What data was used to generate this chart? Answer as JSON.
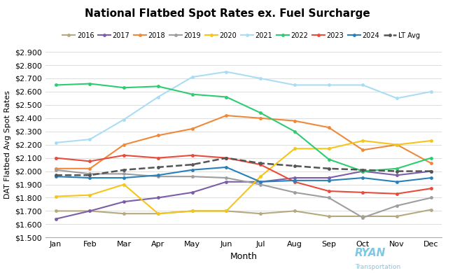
{
  "title": "National Flatbed Spot Rates ex. Fuel Surcharge",
  "xlabel": "Month",
  "ylabel": "DAT Flatbed Avg Spot Rates",
  "months": [
    "Jan",
    "Feb",
    "Mar",
    "Apr",
    "May",
    "Jun",
    "Jul",
    "Aug",
    "Sep",
    "Oct",
    "Nov",
    "Dec"
  ],
  "ylim": [
    1.5,
    2.9
  ],
  "yticks": [
    1.5,
    1.6,
    1.7,
    1.8,
    1.9,
    2.0,
    2.1,
    2.2,
    2.3,
    2.4,
    2.5,
    2.6,
    2.7,
    2.8,
    2.9
  ],
  "series": {
    "2016": {
      "color": "#b5aa7f",
      "values": [
        1.7,
        1.7,
        1.68,
        1.68,
        1.7,
        1.7,
        1.68,
        1.7,
        1.66,
        1.66,
        1.66,
        1.71
      ]
    },
    "2017": {
      "color": "#7b5ea7",
      "values": [
        1.64,
        1.7,
        1.77,
        1.8,
        1.84,
        1.92,
        1.92,
        1.95,
        1.95,
        2.0,
        1.97,
        2.0
      ]
    },
    "2018": {
      "color": "#f0883a",
      "values": [
        2.02,
        2.02,
        2.2,
        2.27,
        2.32,
        2.42,
        2.4,
        2.38,
        2.33,
        2.16,
        2.2,
        2.06
      ]
    },
    "2019": {
      "color": "#9e9e9e",
      "values": [
        2.01,
        1.98,
        1.98,
        1.96,
        1.96,
        1.95,
        1.9,
        1.84,
        1.8,
        1.65,
        1.74,
        1.8
      ]
    },
    "2020": {
      "color": "#f5c518",
      "values": [
        1.81,
        1.82,
        1.9,
        1.68,
        1.7,
        1.7,
        1.96,
        2.17,
        2.17,
        2.23,
        2.2,
        2.23
      ]
    },
    "2021": {
      "color": "#aaddf5",
      "values": [
        2.215,
        2.24,
        2.39,
        2.56,
        2.71,
        2.75,
        2.7,
        2.65,
        2.65,
        2.65,
        2.55,
        2.6
      ]
    },
    "2022": {
      "color": "#2ecc71",
      "values": [
        2.65,
        2.66,
        2.63,
        2.64,
        2.58,
        2.56,
        2.44,
        2.3,
        2.09,
        2.0,
        2.02,
        2.1
      ]
    },
    "2023": {
      "color": "#e74c3c",
      "values": [
        2.1,
        2.075,
        2.12,
        2.1,
        2.12,
        2.1,
        2.05,
        1.92,
        1.85,
        1.84,
        1.83,
        1.87
      ]
    },
    "2024": {
      "color": "#2980b9",
      "values": [
        1.96,
        1.95,
        1.95,
        1.97,
        2.01,
        2.03,
        1.92,
        1.93,
        1.93,
        1.95,
        1.92,
        1.95
      ]
    },
    "LT Avg": {
      "color": "#555555",
      "values": [
        1.97,
        1.97,
        2.01,
        2.03,
        2.05,
        2.1,
        2.06,
        2.04,
        2.02,
        2.01,
        2.0,
        2.0
      ]
    }
  },
  "legend_order": [
    "2016",
    "2017",
    "2018",
    "2019",
    "2020",
    "2021",
    "2022",
    "2023",
    "2024",
    "LT Avg"
  ],
  "dat_logo_color": "#1a6faf",
  "dat_text_color": "#ffffff",
  "ryan_color": "#7ec8e3",
  "background_color": "#ffffff"
}
